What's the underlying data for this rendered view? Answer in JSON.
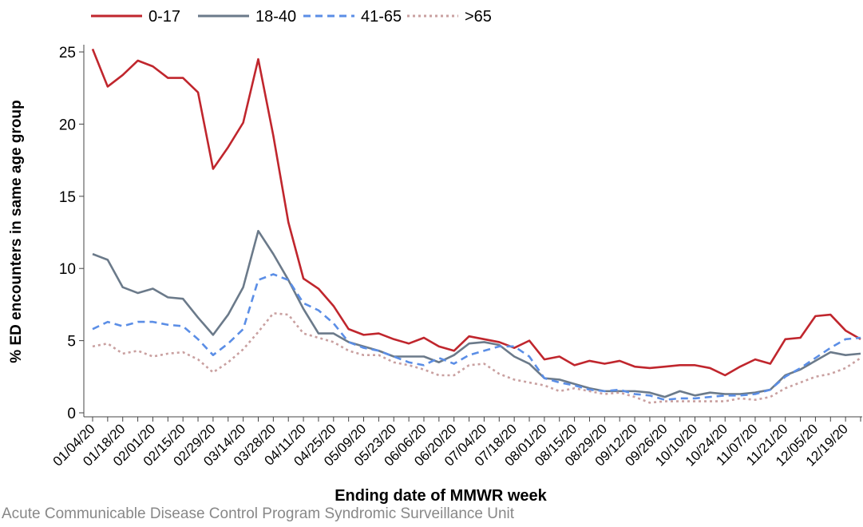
{
  "chart_data": {
    "type": "line",
    "x_label": "Ending date of MMWR week",
    "y_label": "% ED encounters in same age group",
    "source": "Acute Communicable Disease Control Program Syndromic Surveillance Unit",
    "categories": [
      "01/04/20",
      null,
      "01/18/20",
      null,
      "02/01/20",
      null,
      "02/15/20",
      null,
      "02/29/20",
      null,
      "03/14/20",
      null,
      "03/28/20",
      null,
      "04/11/20",
      null,
      "04/25/20",
      null,
      "05/09/20",
      null,
      "05/23/20",
      null,
      "06/06/20",
      null,
      "06/20/20",
      null,
      "07/04/20",
      null,
      "07/18/20",
      null,
      "08/01/20",
      null,
      "08/15/20",
      null,
      "08/29/20",
      null,
      "09/12/20",
      null,
      "09/26/20",
      null,
      "10/10/20",
      null,
      "10/24/20",
      null,
      "11/07/20",
      null,
      "11/21/20",
      null,
      "12/05/20",
      null,
      "12/19/20",
      null
    ],
    "ylim": [
      0,
      25.5
    ],
    "yticks": [
      0,
      5,
      10,
      15,
      20,
      25
    ],
    "grid": false,
    "legend": "top",
    "series": [
      {
        "name": "0-17",
        "color": "#c0262d",
        "dash": "solid",
        "values": [
          25.2,
          22.6,
          23.4,
          24.4,
          24.0,
          23.2,
          23.2,
          22.2,
          16.9,
          18.4,
          20.1,
          24.5,
          19.2,
          13.2,
          9.3,
          8.6,
          7.4,
          5.8,
          5.4,
          5.5,
          5.1,
          4.8,
          5.2,
          4.6,
          4.3,
          5.3,
          5.1,
          4.9,
          4.5,
          5.0,
          3.7,
          3.9,
          3.3,
          3.6,
          3.4,
          3.6,
          3.2,
          3.1,
          3.2,
          3.3,
          3.3,
          3.1,
          2.6,
          3.2,
          3.7,
          3.4,
          5.1,
          5.2,
          6.7,
          6.8,
          5.7,
          5.1
        ]
      },
      {
        "name": "18-40",
        "color": "#6b7a8a",
        "dash": "solid",
        "values": [
          11.0,
          10.6,
          8.7,
          8.3,
          8.6,
          8.0,
          7.9,
          6.6,
          5.4,
          6.8,
          8.7,
          12.6,
          11.0,
          9.2,
          7.2,
          5.5,
          5.5,
          4.9,
          4.6,
          4.3,
          3.9,
          3.9,
          3.9,
          3.5,
          4.0,
          4.8,
          4.9,
          4.7,
          3.9,
          3.4,
          2.4,
          2.3,
          2.0,
          1.7,
          1.5,
          1.5,
          1.5,
          1.4,
          1.1,
          1.5,
          1.2,
          1.4,
          1.3,
          1.3,
          1.4,
          1.6,
          2.6,
          3.0,
          3.6,
          4.2,
          4.0,
          4.1
        ]
      },
      {
        "name": "41-65",
        "color": "#5b8ee6",
        "dash": "dashed",
        "values": [
          5.8,
          6.3,
          6.0,
          6.3,
          6.3,
          6.1,
          6.0,
          5.1,
          4.0,
          4.8,
          5.8,
          9.2,
          9.6,
          9.2,
          7.6,
          7.1,
          6.2,
          4.9,
          4.5,
          4.3,
          3.9,
          3.5,
          3.3,
          3.8,
          3.4,
          4.0,
          4.3,
          4.6,
          4.6,
          3.9,
          2.4,
          2.1,
          1.9,
          1.6,
          1.5,
          1.6,
          1.3,
          1.2,
          0.9,
          1.0,
          1.0,
          1.1,
          1.2,
          1.2,
          1.3,
          1.6,
          2.5,
          3.1,
          3.8,
          4.5,
          5.1,
          5.2
        ]
      },
      {
        "name": ">65",
        "color": "#c9a0a0",
        "dash": "dotted",
        "values": [
          4.6,
          4.8,
          4.1,
          4.3,
          3.9,
          4.1,
          4.2,
          3.7,
          2.8,
          3.5,
          4.4,
          5.6,
          6.9,
          6.8,
          5.5,
          5.2,
          4.9,
          4.3,
          4.0,
          4.0,
          3.5,
          3.3,
          3.0,
          2.6,
          2.6,
          3.3,
          3.4,
          2.7,
          2.3,
          2.1,
          1.9,
          1.5,
          1.7,
          1.5,
          1.3,
          1.4,
          1.1,
          0.7,
          0.8,
          0.8,
          0.8,
          0.8,
          0.8,
          1.0,
          0.9,
          1.1,
          1.7,
          2.1,
          2.5,
          2.7,
          3.1,
          3.8
        ]
      }
    ]
  }
}
